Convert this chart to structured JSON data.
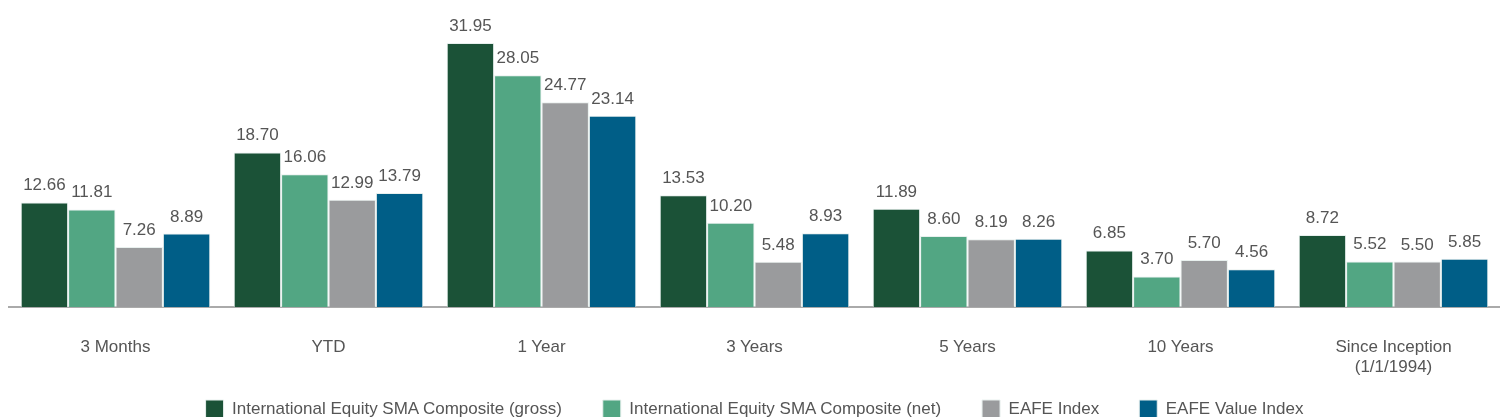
{
  "chart_data": {
    "type": "bar",
    "categories": [
      "3 Months",
      "YTD",
      "1 Year",
      "3 Years",
      "5 Years",
      "10 Years",
      "Since Inception (1/1/1994)"
    ],
    "series": [
      {
        "name": "International Equity SMA Composite (gross)",
        "color": "#1b5237",
        "values": [
          12.66,
          18.7,
          31.95,
          13.53,
          11.89,
          6.85,
          8.72
        ],
        "value_labels": [
          "12.66",
          "18.70",
          "31.95",
          "13.53",
          "11.89",
          "6.85",
          "8.72"
        ]
      },
      {
        "name": "International Equity SMA Composite (net)",
        "color": "#52a683",
        "values": [
          11.81,
          16.06,
          28.05,
          10.2,
          8.6,
          3.7,
          5.52
        ],
        "value_labels": [
          "11.81",
          "16.06",
          "28.05",
          "10.20",
          "8.60",
          "3.70",
          "5.52"
        ]
      },
      {
        "name": "EAFE Index",
        "color": "#9a9b9d",
        "values": [
          7.26,
          12.99,
          24.77,
          5.48,
          8.19,
          5.7,
          5.5
        ],
        "value_labels": [
          "7.26",
          "12.99",
          "24.77",
          "5.48",
          "8.19",
          "5.70",
          "5.50"
        ]
      },
      {
        "name": "EAFE Value Index",
        "color": "#005e87",
        "values": [
          8.89,
          13.79,
          23.14,
          8.93,
          8.26,
          4.56,
          5.85
        ],
        "value_labels": [
          "8.89",
          "13.79",
          "23.14",
          "8.93",
          "8.26",
          "4.56",
          "5.85"
        ]
      }
    ],
    "legend": "bottom",
    "grid": false
  }
}
